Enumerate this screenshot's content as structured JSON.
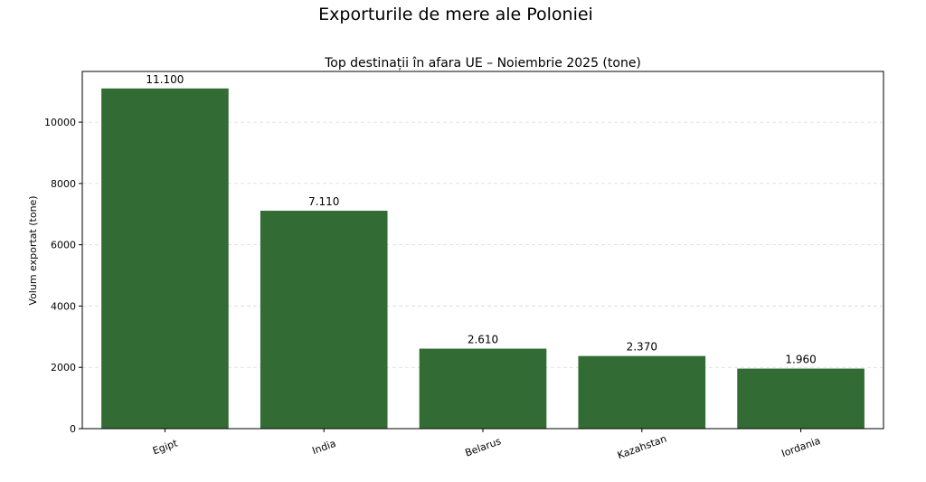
{
  "suptitle": "Exporturile de mere ale Poloniei",
  "chart_data": {
    "type": "bar",
    "title": "Top destinații în afara UE – Noiembrie 2025 (tone)",
    "xlabel": "",
    "ylabel": "Volum exportat (tone)",
    "categories": [
      "Egipt",
      "India",
      "Belarus",
      "Kazahstan",
      "Iordania"
    ],
    "values": [
      11100,
      7110,
      2610,
      2370,
      1960
    ],
    "data_labels": [
      "11.100",
      "7.110",
      "2.610",
      "2.370",
      "1.960"
    ],
    "yticks": [
      0,
      2000,
      4000,
      6000,
      8000,
      10000
    ],
    "ylim": [
      0,
      11655
    ],
    "grid": "y-dashed",
    "bar_color": "#336b35",
    "legend": "none"
  }
}
